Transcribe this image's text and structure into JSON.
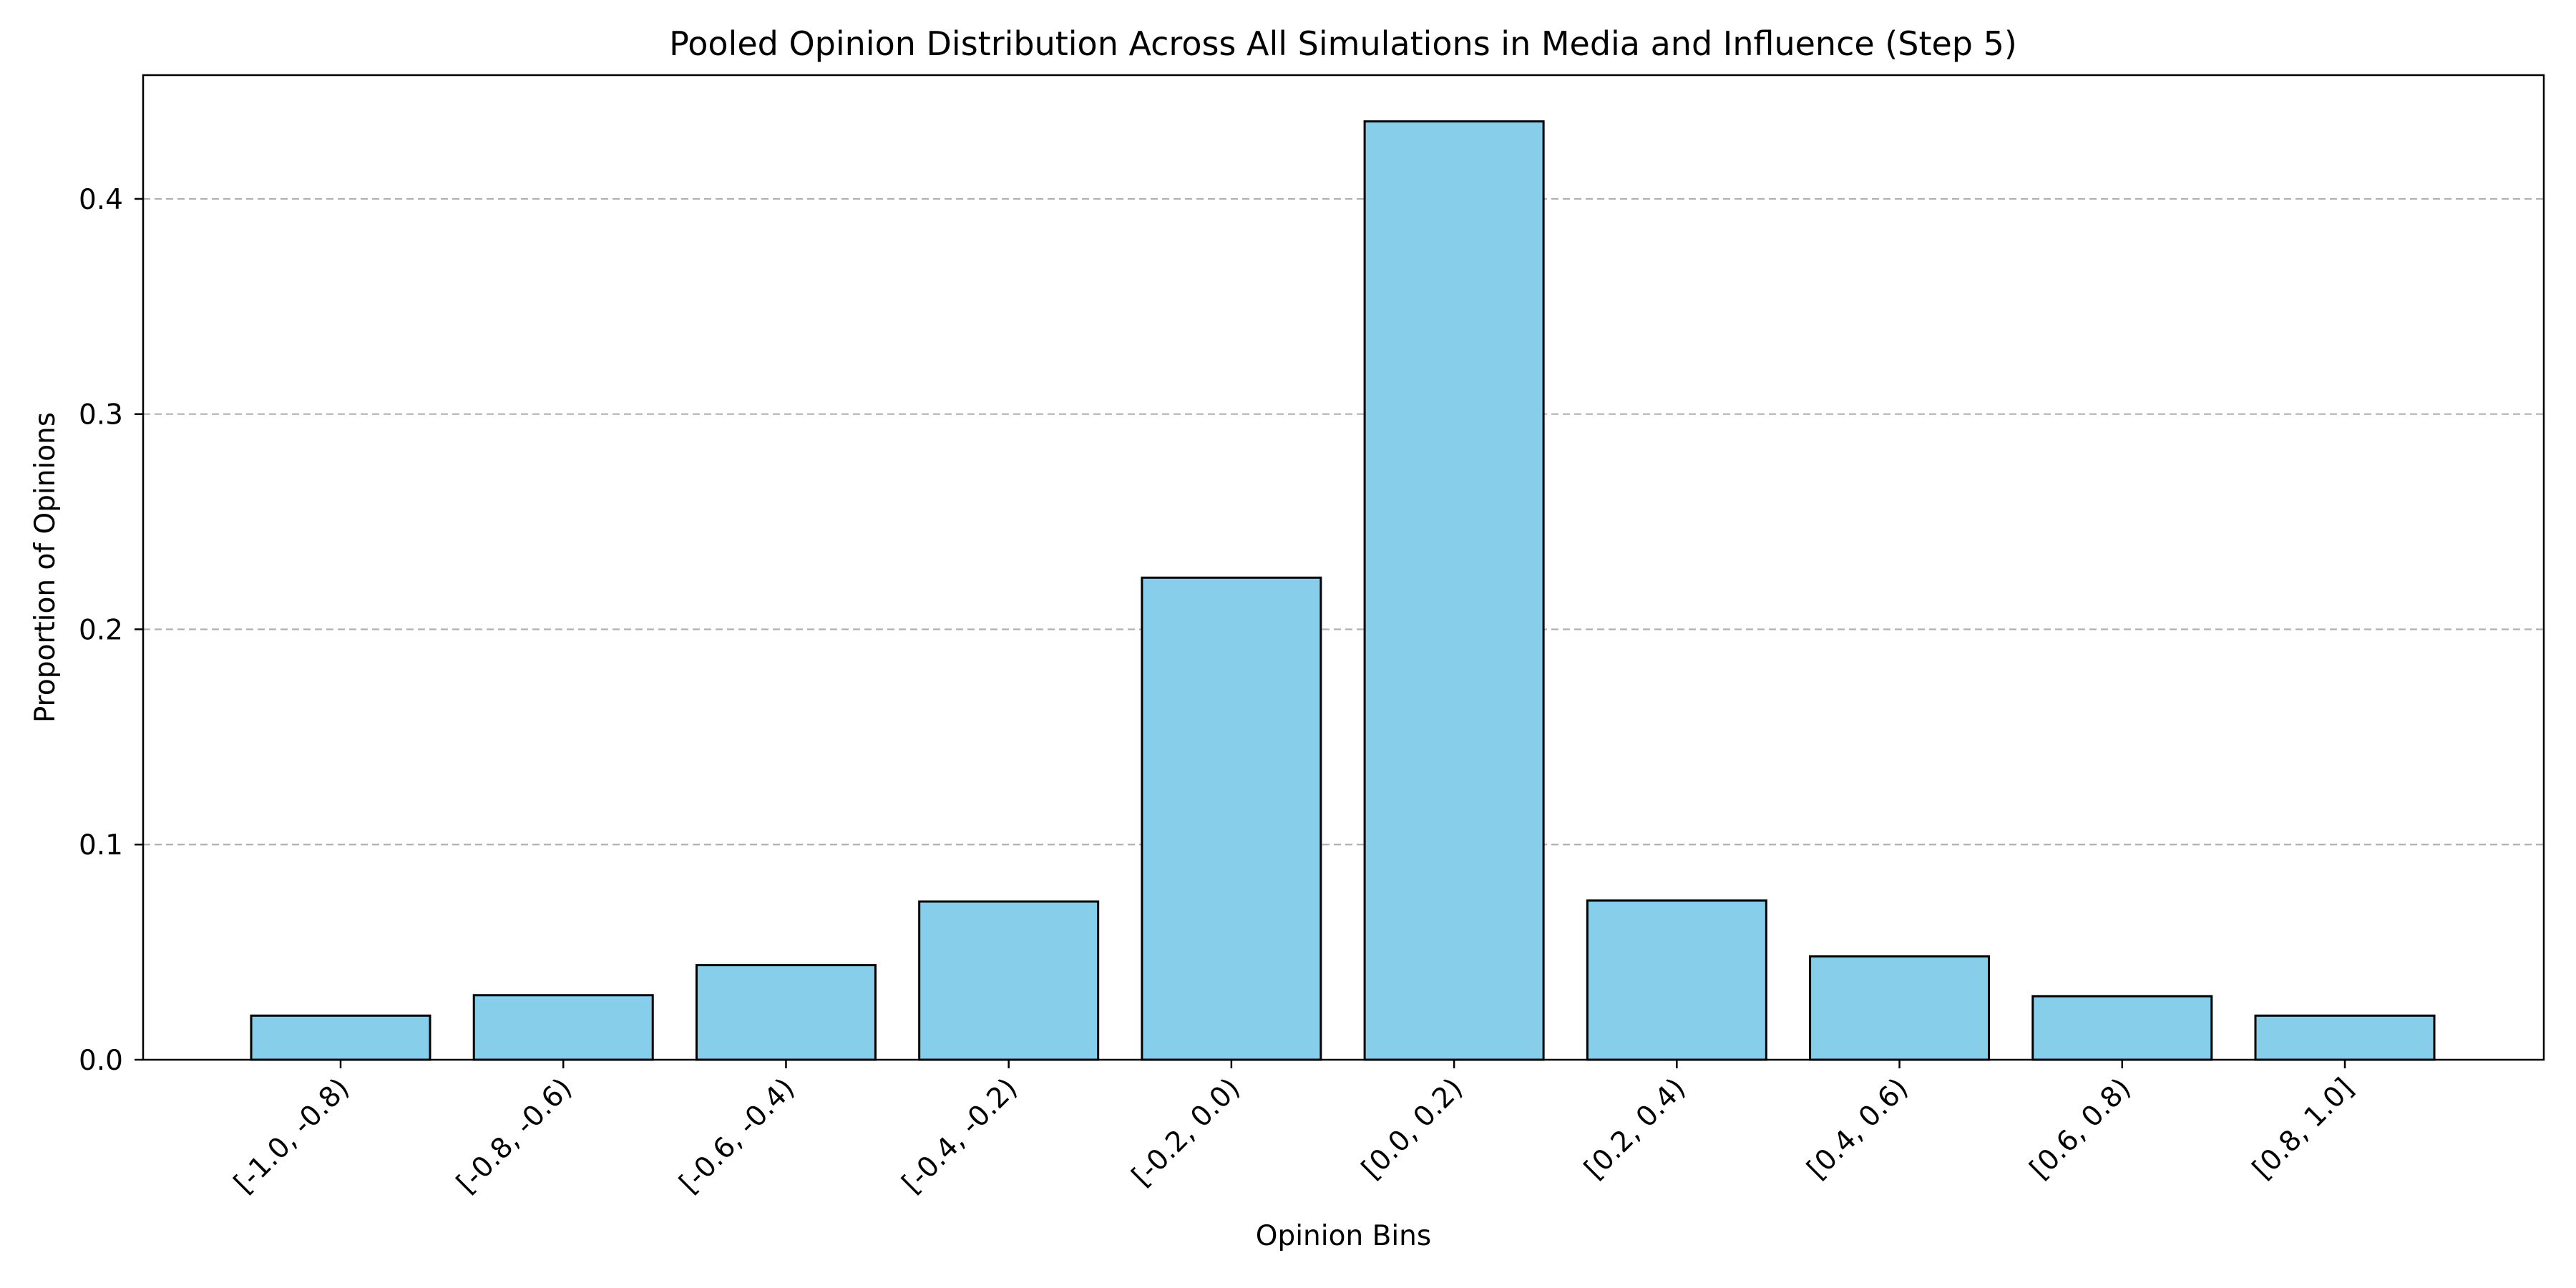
{
  "chart_data": {
    "type": "bar",
    "title": "Pooled Opinion Distribution Across All Simulations in Media and Influence (Step 5)",
    "xlabel": "Opinion Bins",
    "ylabel": "Proportion of Opinions",
    "categories": [
      "[-1.0, -0.8)",
      "[-0.8, -0.6)",
      "[-0.6, -0.4)",
      "[-0.4, -0.2)",
      "[-0.2, 0.0)",
      "[0.0, 0.2)",
      "[0.2, 0.4)",
      "[0.4, 0.6)",
      "[0.6, 0.8)",
      "[0.8, 1.0]"
    ],
    "values": [
      0.0205,
      0.03,
      0.044,
      0.0735,
      0.224,
      0.436,
      0.074,
      0.048,
      0.0295,
      0.0205
    ],
    "ylim": [
      0,
      0.4575
    ],
    "yticks": [
      0.0,
      0.1,
      0.2,
      0.3,
      0.4
    ],
    "ytick_labels": [
      "0.0",
      "0.1",
      "0.2",
      "0.3",
      "0.4"
    ],
    "grid": "y-dashed",
    "bar_color": "#87ceeb",
    "edge_color": "#000000"
  }
}
